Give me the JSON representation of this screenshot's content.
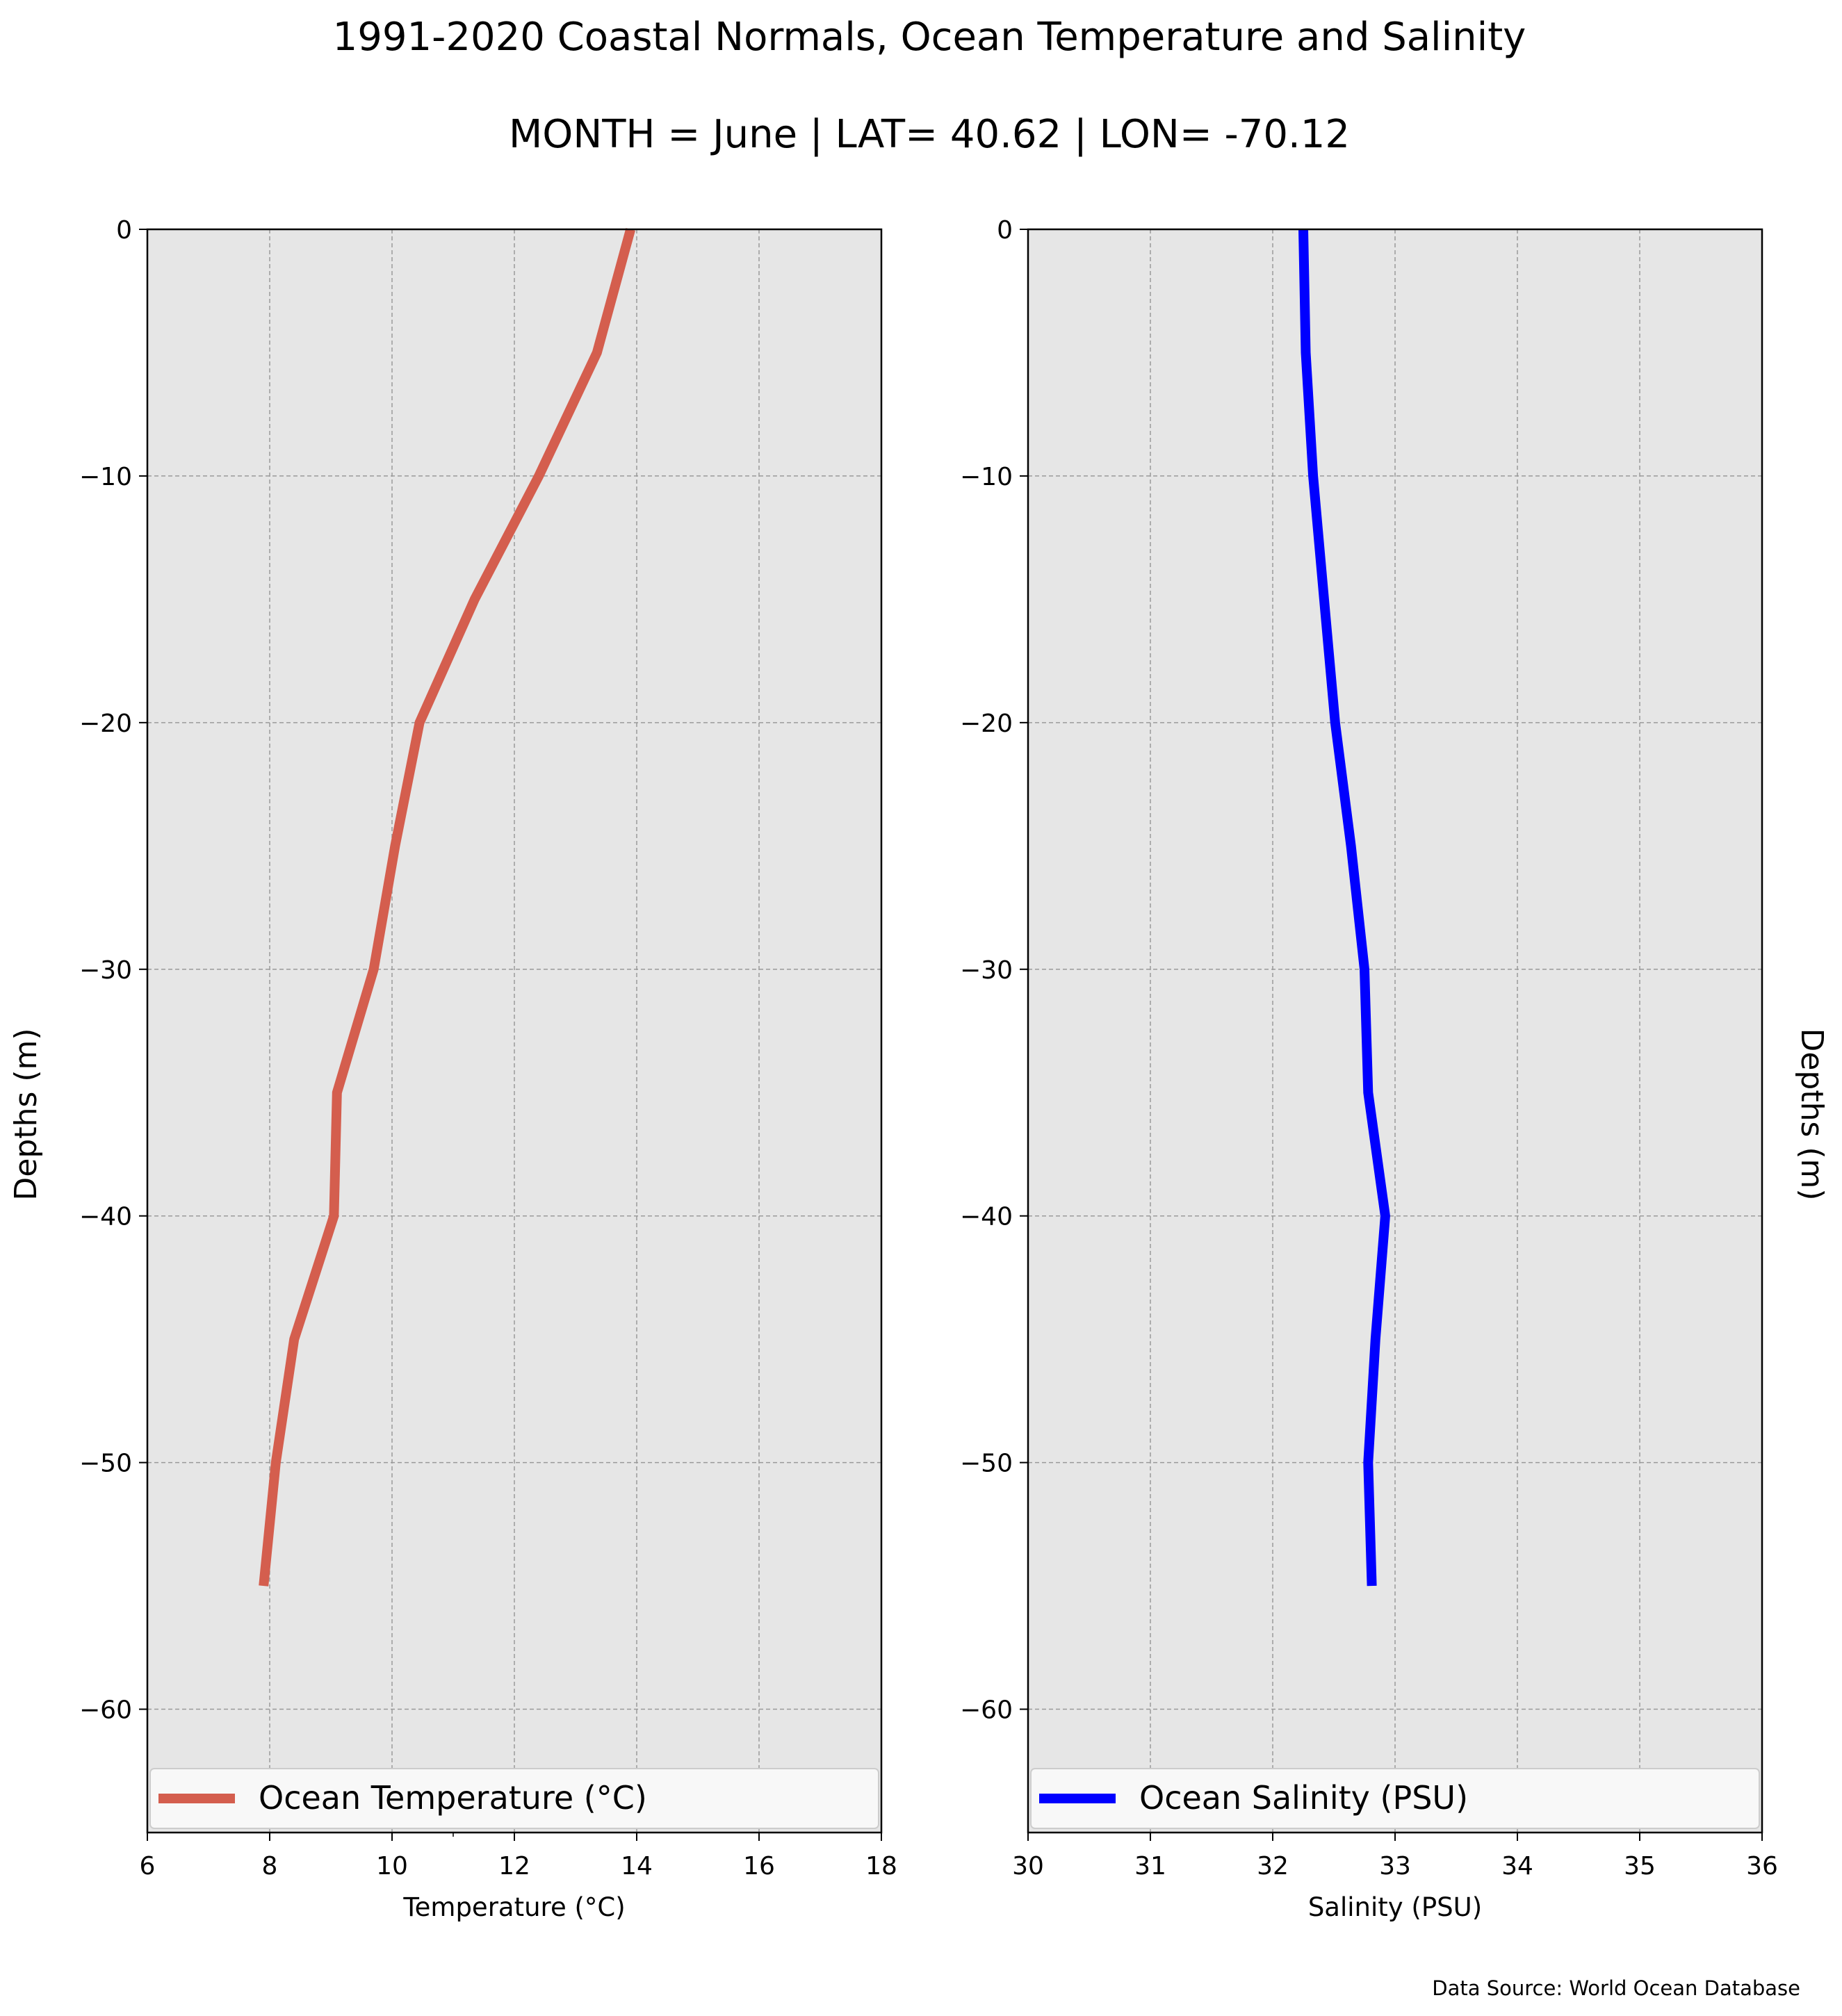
{
  "title": "1991-2020 Coastal Normals, Ocean Temperature and Salinity",
  "subtitle": "MONTH = June | LAT= 40.62 | LON= -70.12",
  "source": "Data Source: World Ocean Database",
  "colors": {
    "background": "#ffffff",
    "axes_face": "#e6e6e6",
    "grid": "#9a9a9a",
    "temperature": "#d45e4e",
    "salinity": "#0000ff"
  },
  "chart_data": [
    {
      "type": "line",
      "xlabel": "Temperature ($^\\circ$C)",
      "xlabel_display": "Temperature (°C)",
      "ylabel": "Depths (m)",
      "ylabel_side": "left",
      "xlim": [
        6,
        18
      ],
      "ylim": [
        -65,
        0
      ],
      "xticks": [
        "6",
        "8",
        "10",
        "12",
        "14",
        "16",
        "18"
      ],
      "yticks": [
        "0",
        "−10",
        "−20",
        "−30",
        "−40",
        "−50",
        "−60"
      ],
      "grid": true,
      "legend_position": "bottom",
      "series": [
        {
          "name": "Ocean Temperature (°C)",
          "color": "#d45e4e",
          "x": [
            13.9,
            13.35,
            12.4,
            11.35,
            10.45,
            10.05,
            9.7,
            9.1,
            9.05,
            8.4,
            8.1,
            7.9
          ],
          "y": [
            0,
            -5,
            -10,
            -15,
            -20,
            -25,
            -30,
            -35,
            -40,
            -45,
            -50,
            -55
          ]
        }
      ]
    },
    {
      "type": "line",
      "xlabel": "Salinity (PSU)",
      "ylabel": "Depths (m)",
      "ylabel_side": "right",
      "xlim": [
        30,
        36
      ],
      "ylim": [
        -65,
        0
      ],
      "xticks": [
        "30",
        "31",
        "32",
        "33",
        "34",
        "35",
        "36"
      ],
      "yticks": [
        "0",
        "−10",
        "−20",
        "−30",
        "−40",
        "−50",
        "−60"
      ],
      "grid": true,
      "legend_position": "bottom",
      "series": [
        {
          "name": "Ocean Salinity (PSU)",
          "color": "#0000ff",
          "x": [
            32.25,
            32.27,
            32.33,
            32.42,
            32.51,
            32.64,
            32.75,
            32.78,
            32.92,
            32.84,
            32.78,
            32.81
          ],
          "y": [
            0,
            -5,
            -10,
            -15,
            -20,
            -25,
            -30,
            -35,
            -40,
            -45,
            -50,
            -55
          ]
        }
      ]
    }
  ]
}
